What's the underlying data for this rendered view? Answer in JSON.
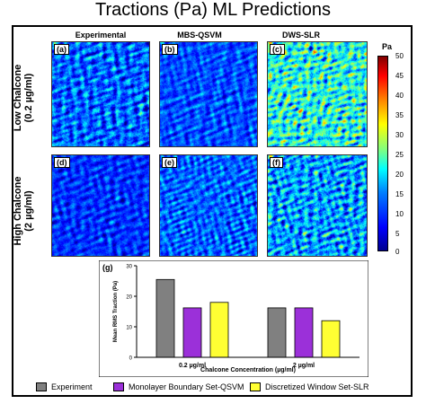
{
  "title": "Tractions (Pa) ML Predictions",
  "columns": [
    "Experimental",
    "MBS-QSVM",
    "DWS-SLR"
  ],
  "rows": [
    "Low Chalcone\n(0.2 µg/ml)",
    "High Chalcone\n(2 µg/ml)"
  ],
  "rows_display": [
    [
      "Low Chalcone",
      "(0.2 µg/ml)"
    ],
    [
      "High Chalcone",
      "(2 µg/ml)"
    ]
  ],
  "panels": [
    "(a)",
    "(b)",
    "(c)",
    "(d)",
    "(e)",
    "(f)"
  ],
  "colorbar": {
    "unit": "Pa",
    "ticks": [
      "50",
      "45",
      "40",
      "35",
      "30",
      "25",
      "20",
      "15",
      "10",
      "5",
      "0"
    ]
  },
  "chart_label": "(g)",
  "chart_data": {
    "type": "bar",
    "categories": [
      "0.2 µg/ml",
      "2 µg/ml"
    ],
    "series": [
      {
        "name": "Experiment",
        "color": "#808080",
        "values": [
          25.5,
          16.2
        ]
      },
      {
        "name": "Monolayer Boundary Set-QSVM",
        "color": "#9b30d9",
        "values": [
          16.2,
          16.2
        ]
      },
      {
        "name": "Discretized Window Set-SLR",
        "color": "#ffff33",
        "values": [
          18.0,
          12.0
        ]
      }
    ],
    "xlabel": "Chalcone Concentration (µg/ml)",
    "ylabel": "Mean RMS Traction (Pa)",
    "ylim": [
      0,
      30
    ],
    "yticks": [
      0,
      10,
      20,
      30
    ],
    "legend": "bottom"
  }
}
